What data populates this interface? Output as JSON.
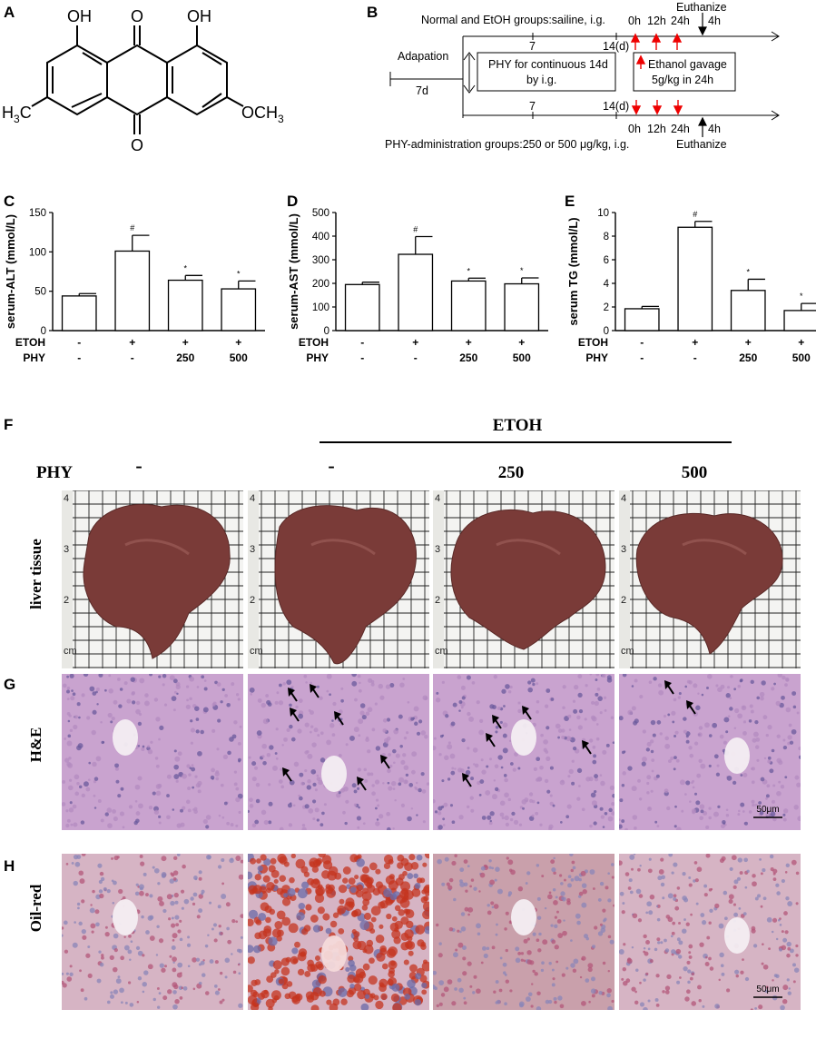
{
  "panels": {
    "A": "A",
    "B": "B",
    "C": "C",
    "D": "D",
    "E": "E",
    "F": "F",
    "G": "G",
    "H": "H"
  },
  "structure": {
    "oh_left": "OH",
    "oh_right": "OH",
    "o_top": "O",
    "o_bottom": "O",
    "h3c": "H",
    "h3c_sub": "3",
    "h3c_c": "C",
    "och3": "OCH",
    "och3_sub": "3"
  },
  "schedule": {
    "normal_line": "Normal and EtOH groups:sailine, i.g.",
    "phy_line": "PHY-administration groups:250 or 500 μg/kg, i.g.",
    "adaptation": "Adapation",
    "adapt_days": "7d",
    "tick_7": "7",
    "tick_14": "14(d)",
    "phy_box": [
      "PHY for continuous 14d",
      "by i.g."
    ],
    "ethanol_box": [
      "Ethanol gavage",
      "5g/kg in 24h"
    ],
    "times": [
      "0h",
      "12h",
      "24h"
    ],
    "euthanize": "Euthanize",
    "hours_4": "4h"
  },
  "chart_data": [
    {
      "type": "bar",
      "panel": "C",
      "ylabel": "serum-ALT (mmol/L)",
      "ylim": [
        0,
        150
      ],
      "yticks": [
        0,
        50,
        100,
        150
      ],
      "categories": [
        "1",
        "2",
        "3",
        "4"
      ],
      "values": [
        44,
        101,
        64,
        53
      ],
      "errors": [
        3,
        20,
        6,
        10
      ],
      "sig": [
        "",
        "#",
        "*",
        "*"
      ],
      "etoh": [
        "-",
        "+",
        "+",
        "+"
      ],
      "phy": [
        "-",
        "-",
        "250",
        "500"
      ],
      "row_labels": [
        "ETOH",
        "PHY"
      ]
    },
    {
      "type": "bar",
      "panel": "D",
      "ylabel": "serum-AST (mmol/L)",
      "ylim": [
        0,
        500
      ],
      "yticks": [
        0,
        100,
        200,
        300,
        400,
        500
      ],
      "categories": [
        "1",
        "2",
        "3",
        "4"
      ],
      "values": [
        195,
        323,
        210,
        198
      ],
      "errors": [
        10,
        75,
        12,
        25
      ],
      "sig": [
        "",
        "#",
        "*",
        "*"
      ],
      "etoh": [
        "-",
        "+",
        "+",
        "+"
      ],
      "phy": [
        "-",
        "-",
        "250",
        "500"
      ],
      "row_labels": [
        "ETOH",
        "PHY"
      ]
    },
    {
      "type": "bar",
      "panel": "E",
      "ylabel": "serum TG (mmol/L)",
      "ylim": [
        0,
        10
      ],
      "yticks": [
        0,
        2,
        4,
        6,
        8,
        10
      ],
      "categories": [
        "1",
        "2",
        "3",
        "4"
      ],
      "values": [
        1.85,
        8.75,
        3.4,
        1.7
      ],
      "errors": [
        0.2,
        0.5,
        0.95,
        0.6
      ],
      "sig": [
        "",
        "#",
        "*",
        "*"
      ],
      "etoh": [
        "-",
        "+",
        "+",
        "+"
      ],
      "phy": [
        "-",
        "-",
        "250",
        "500"
      ],
      "row_labels": [
        "ETOH",
        "PHY"
      ]
    }
  ],
  "figure": {
    "etoh_header": "ETOH",
    "phy_label": "PHY",
    "phy_cols": [
      "-",
      "-",
      "250",
      "500"
    ],
    "rows": [
      "liver tissue",
      "H&E",
      "Oil-red"
    ],
    "scale_bar": "50μm",
    "ruler_marks": [
      "4",
      "3",
      "2",
      "cm"
    ],
    "colors": {
      "liver": "#7a3b38",
      "he": "#c9a3cf",
      "oil_light": "#d6b4c4",
      "oil_heavy": "#c4341f",
      "grid_bg": "#f4f4f2"
    }
  }
}
